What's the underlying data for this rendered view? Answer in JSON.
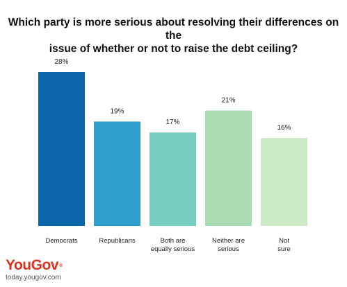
{
  "chart_data": {
    "type": "bar",
    "title": "Which party is more serious about resolving their differences on the\nissue of whether or not to raise the debt ceiling?",
    "categories": [
      "Democrats",
      "Republicans",
      "Both are\nequally serious",
      "Neither are\nserious",
      "Not\nsure"
    ],
    "values": [
      28,
      19,
      17,
      21,
      16
    ],
    "value_labels": [
      "28%",
      "19%",
      "17%",
      "21%",
      "16%"
    ],
    "colors": [
      "#0a66a8",
      "#2e9ecb",
      "#76cdc0",
      "#a9dcb3",
      "#cdeac6"
    ],
    "ylim": [
      0,
      28
    ],
    "grid": false,
    "legend": "none"
  },
  "brand": {
    "logo": "YouGov",
    "logo_mark": "®",
    "url": "today.yougov.com"
  }
}
